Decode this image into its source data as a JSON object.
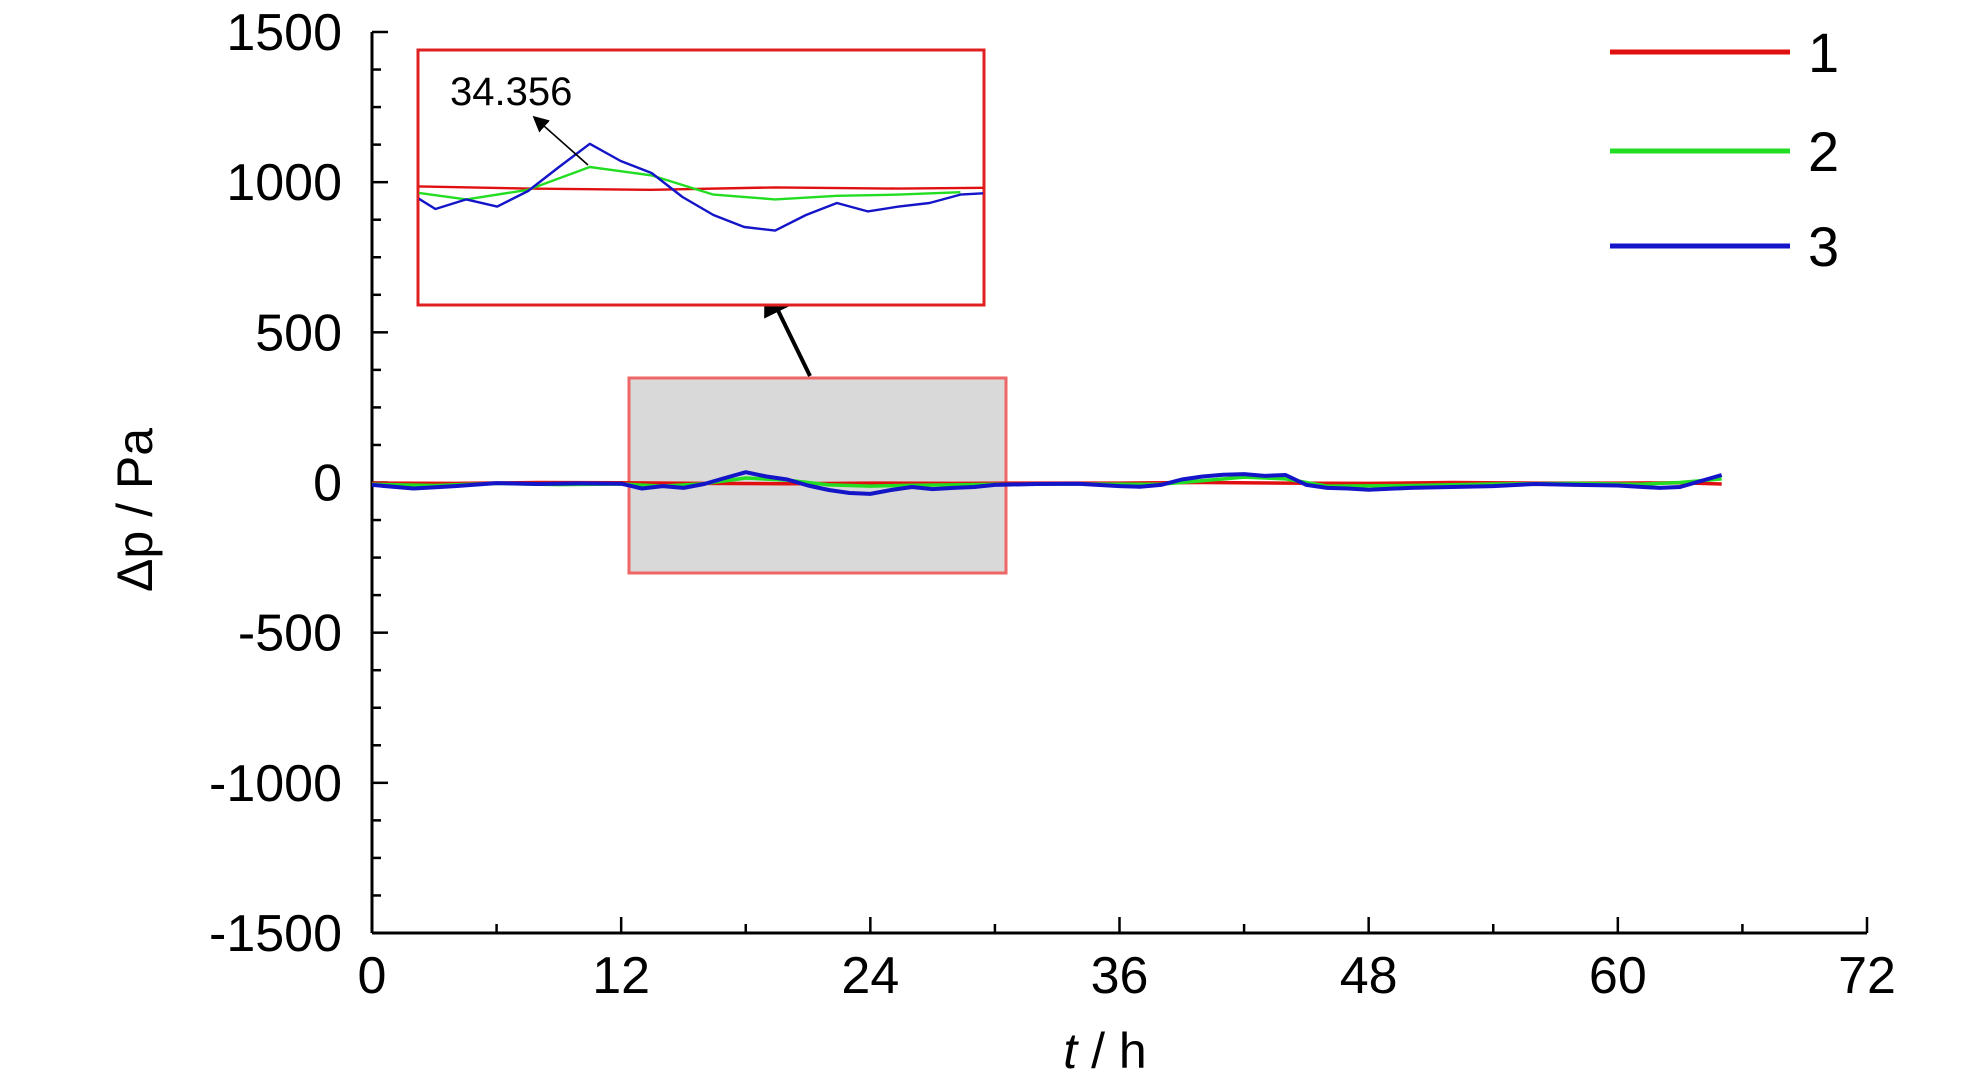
{
  "chart_data": {
    "type": "line",
    "xlabel": {
      "var": "t",
      "unit": " / h"
    },
    "ylabel": {
      "var": "Δp",
      "unit": " / Pa"
    },
    "xlim": [
      0,
      72
    ],
    "ylim": [
      -1500,
      1500
    ],
    "x_ticks": [
      0,
      12,
      24,
      36,
      48,
      60,
      72
    ],
    "y_ticks": [
      1500,
      1000,
      500,
      0,
      -500,
      -1000,
      -1500
    ],
    "x_tick_labels": [
      "0",
      "12",
      "24",
      "36",
      "48",
      "60",
      "72"
    ],
    "y_tick_labels": [
      "1500",
      "1000",
      "500",
      "0",
      "-500",
      "-1000",
      "-1500"
    ],
    "legend_position": "top-right",
    "series": [
      {
        "name": "1",
        "color": "#e01010",
        "x": [
          0,
          4,
          8,
          12,
          16,
          20,
          24,
          28,
          32,
          36,
          40,
          44,
          48,
          52,
          56,
          60,
          63,
          65
        ],
        "y": [
          -2,
          -3,
          0,
          -1,
          -3,
          -4,
          -2,
          -3,
          -2,
          -2,
          0,
          -2,
          -3,
          0,
          -2,
          -2,
          -1,
          -5
        ]
      },
      {
        "name": "2",
        "color": "#22dd22",
        "x": [
          0,
          3,
          6,
          9,
          12,
          14,
          16,
          18,
          20,
          22,
          24,
          26,
          28,
          30,
          34,
          38,
          42,
          44,
          46,
          50,
          54,
          58,
          61,
          63,
          65
        ],
        "y": [
          -6,
          -10,
          -3,
          -7,
          -5,
          -12,
          -4,
          15,
          8,
          -8,
          -12,
          -9,
          -8,
          -6,
          -5,
          -6,
          18,
          12,
          -12,
          -10,
          -5,
          -3,
          -6,
          0,
          12
        ]
      },
      {
        "name": "3",
        "color": "#1414c8",
        "x": [
          0,
          2,
          4,
          6,
          8,
          10,
          12,
          13,
          14,
          15,
          16,
          17,
          18,
          19,
          20,
          21,
          22,
          23,
          24,
          25,
          26,
          27,
          28,
          29,
          30,
          32,
          34,
          36,
          37,
          38,
          39,
          40,
          41,
          42,
          43,
          44,
          45,
          46,
          47,
          48,
          50,
          52,
          54,
          56,
          58,
          60,
          61,
          62,
          63,
          64,
          65
        ],
        "y": [
          -8,
          -20,
          -12,
          -2,
          -5,
          -3,
          -4,
          -20,
          -12,
          -18,
          -5,
          15,
          34.356,
          20,
          10,
          -10,
          -25,
          -35,
          -38,
          -25,
          -15,
          -22,
          -18,
          -15,
          -8,
          -5,
          -4,
          -12,
          -14,
          -8,
          10,
          20,
          26,
          28,
          22,
          25,
          -8,
          -18,
          -20,
          -24,
          -18,
          -15,
          -12,
          -5,
          -8,
          -10,
          -14,
          -18,
          -15,
          5,
          25
        ]
      }
    ],
    "inset": {
      "source_x": [
        12.5,
        30.7
      ],
      "source_y": [
        -300,
        350
      ],
      "annotation": "34.356"
    }
  }
}
